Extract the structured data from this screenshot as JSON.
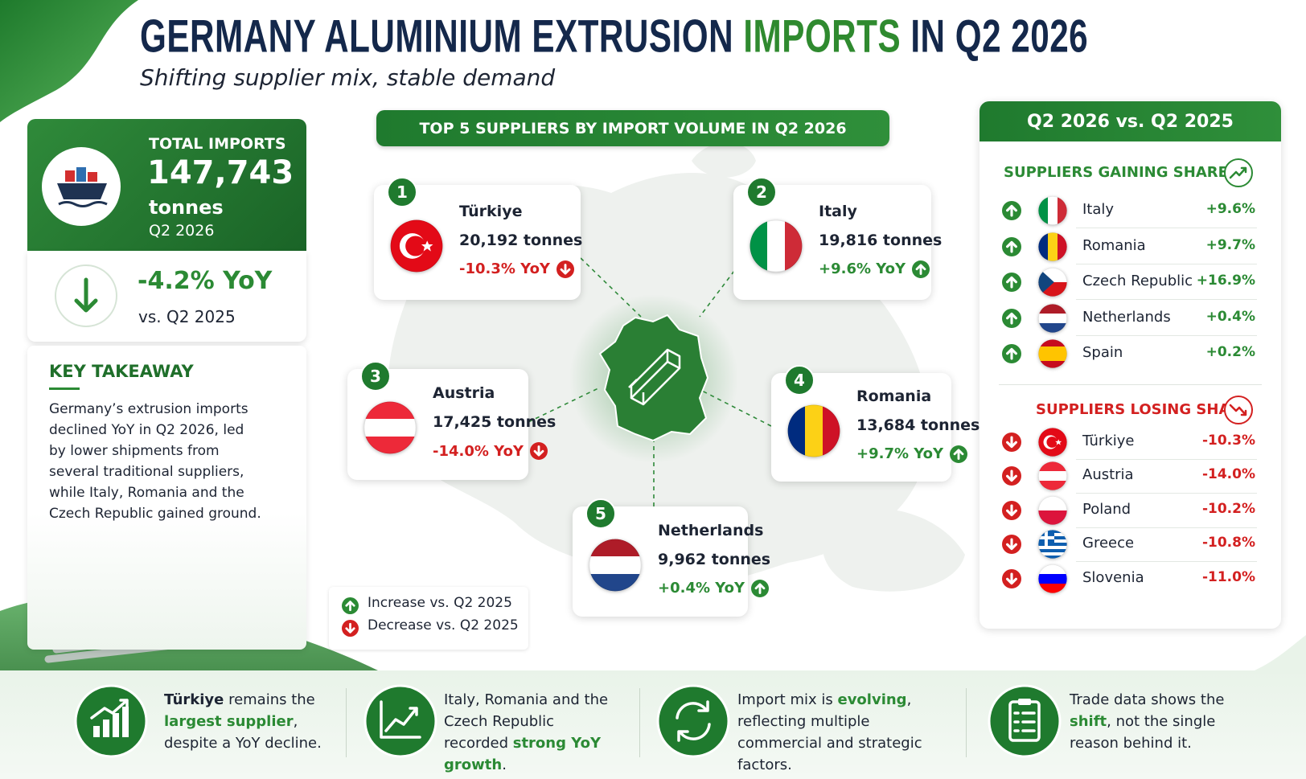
{
  "header": {
    "title_parts": [
      {
        "text": "GERMANY ALUMINIUM EXTRUSION "
      },
      {
        "text": "IMPORTS",
        "style": "accent"
      },
      {
        "text": " IN Q2 2026"
      }
    ],
    "subtitle": "Shifting supplier mix, stable demand"
  },
  "total": {
    "label": "TOTAL IMPORTS",
    "value": "147,743",
    "unit": "tonnes",
    "period": "Q2 2026",
    "change": "-4.2% YoY",
    "compare": "vs. Q2 2025"
  },
  "takeaway": {
    "title": "KEY TAKEAWAY",
    "text": "Germany’s extrusion imports declined YoY in Q2 2026, led by lower shipments from several traditional suppliers, while Italy, Romania and the Czech Republic gained ground."
  },
  "top_suppliers": {
    "title": "TOP 5 SUPPLIERS BY IMPORT VOLUME IN Q2 2026",
    "items": [
      {
        "rank": 1,
        "country": "Türkiye",
        "volume": "20,192 tonnes",
        "change": "-10.3% YoY",
        "direction": "down",
        "flag": {
          "layout": "crescent",
          "colors": [
            "#e30a17",
            "#ffffff"
          ]
        }
      },
      {
        "rank": 2,
        "country": "Italy",
        "volume": "19,816 tonnes",
        "change": "+9.6% YoY",
        "direction": "up",
        "flag": {
          "layout": "v",
          "colors": [
            "#009246",
            "#ffffff",
            "#ce2b37"
          ]
        }
      },
      {
        "rank": 3,
        "country": "Austria",
        "volume": "17,425 tonnes",
        "change": "-14.0% YoY",
        "direction": "down",
        "flag": {
          "layout": "h",
          "colors": [
            "#ed2939",
            "#ffffff",
            "#ed2939"
          ]
        }
      },
      {
        "rank": 4,
        "country": "Romania",
        "volume": "13,684 tonnes",
        "change": "+9.7% YoY",
        "direction": "up",
        "flag": {
          "layout": "v",
          "colors": [
            "#002b7f",
            "#fcd116",
            "#ce1126"
          ]
        }
      },
      {
        "rank": 5,
        "country": "Netherlands",
        "volume": "9,962 tonnes",
        "change": "+0.4% YoY",
        "direction": "up",
        "flag": {
          "layout": "h",
          "colors": [
            "#ae1c28",
            "#ffffff",
            "#21468b"
          ]
        }
      }
    ]
  },
  "legend": {
    "increase": "Increase vs. Q2 2025",
    "decrease": "Decrease vs. Q2 2025"
  },
  "comparison": {
    "title": "Q2 2026 vs. Q2 2025",
    "gaining_title": "SUPPLIERS GAINING SHARE",
    "gaining": [
      {
        "country": "Italy",
        "change": "+9.6%",
        "flag": {
          "layout": "v",
          "colors": [
            "#009246",
            "#ffffff",
            "#ce2b37"
          ]
        }
      },
      {
        "country": "Romania",
        "change": "+9.7%",
        "flag": {
          "layout": "v",
          "colors": [
            "#002b7f",
            "#fcd116",
            "#ce1126"
          ]
        }
      },
      {
        "country": "Czech Republic",
        "change": "+16.9%",
        "flag": {
          "layout": "czech",
          "colors": [
            "#ffffff",
            "#d7141a",
            "#11457e"
          ]
        }
      },
      {
        "country": "Netherlands",
        "change": "+0.4%",
        "flag": {
          "layout": "h",
          "colors": [
            "#ae1c28",
            "#ffffff",
            "#21468b"
          ]
        }
      },
      {
        "country": "Spain",
        "change": "+0.2%",
        "flag": {
          "layout": "h",
          "colors": [
            "#c60b1e",
            "#ffc400",
            "#ffc400",
            "#c60b1e"
          ]
        }
      }
    ],
    "losing_title": "SUPPLIERS LOSING SHARE",
    "losing": [
      {
        "country": "Türkiye",
        "change": "-10.3%",
        "flag": {
          "layout": "crescent",
          "colors": [
            "#e30a17",
            "#ffffff"
          ]
        }
      },
      {
        "country": "Austria",
        "change": "-14.0%",
        "flag": {
          "layout": "h",
          "colors": [
            "#ed2939",
            "#ffffff",
            "#ed2939"
          ]
        }
      },
      {
        "country": "Poland",
        "change": "-10.2%",
        "flag": {
          "layout": "h",
          "colors": [
            "#ffffff",
            "#dc143c"
          ]
        }
      },
      {
        "country": "Greece",
        "change": "-10.8%",
        "flag": {
          "layout": "greece",
          "colors": [
            "#0d5eaf",
            "#ffffff"
          ]
        }
      },
      {
        "country": "Slovenia",
        "change": "-11.0%",
        "flag": {
          "layout": "h",
          "colors": [
            "#ffffff",
            "#0000ff",
            "#ff0000"
          ]
        }
      }
    ]
  },
  "footer": [
    {
      "icon": "bars",
      "parts": [
        {
          "text": "Türkiye",
          "style": "strong"
        },
        {
          "text": " remains the "
        },
        {
          "text": "largest supplier",
          "style": "accent"
        },
        {
          "text": ", despite a YoY decline."
        }
      ]
    },
    {
      "icon": "line",
      "parts": [
        {
          "text": "Italy, Romania and the Czech Republic recorded "
        },
        {
          "text": "strong YoY growth",
          "style": "accent"
        },
        {
          "text": "."
        }
      ]
    },
    {
      "icon": "cycle",
      "parts": [
        {
          "text": "Import mix is "
        },
        {
          "text": "evolving",
          "style": "accent"
        },
        {
          "text": ", reflecting multiple commercial and strategic factors."
        }
      ]
    },
    {
      "icon": "clipboard",
      "parts": [
        {
          "text": "Trade data shows the "
        },
        {
          "text": "shift",
          "style": "accent"
        },
        {
          "text": ", not the single reason behind it."
        }
      ]
    }
  ]
}
